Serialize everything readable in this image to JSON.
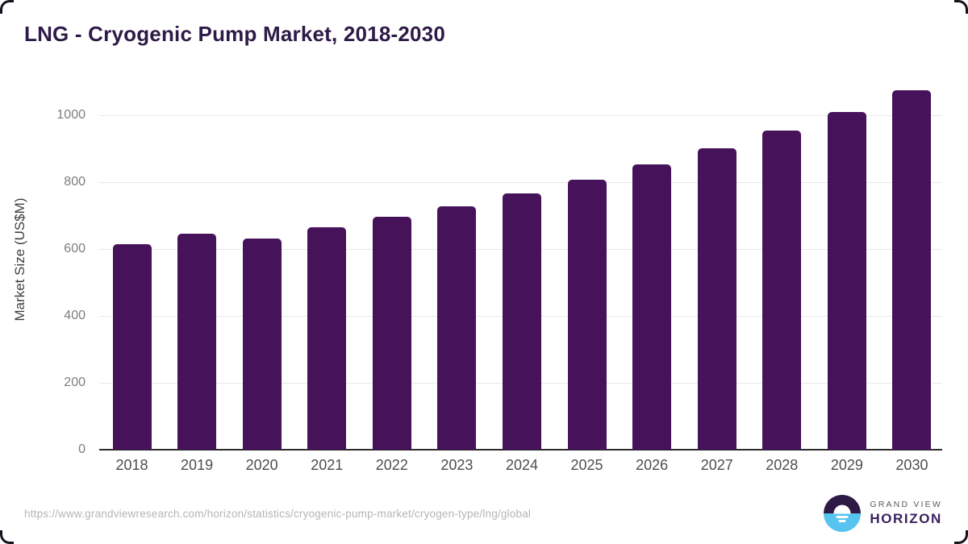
{
  "header": {
    "title": "LNG - Cryogenic Pump Market, 2018-2030"
  },
  "chart_data": {
    "type": "bar",
    "title": "LNG - Cryogenic Pump Market, 2018-2030",
    "categories": [
      "2018",
      "2019",
      "2020",
      "2021",
      "2022",
      "2023",
      "2024",
      "2025",
      "2026",
      "2027",
      "2028",
      "2029",
      "2030"
    ],
    "values": [
      613,
      646,
      630,
      664,
      696,
      728,
      766,
      807,
      852,
      901,
      953,
      1010,
      1073
    ],
    "xlabel": "",
    "ylabel": "Market Size (US$M)",
    "yticks": [
      0,
      200,
      400,
      600,
      800,
      1000
    ],
    "ylim": [
      0,
      1100
    ],
    "grid": true,
    "legend": false,
    "bar_color": "#46125a"
  },
  "footer": {
    "source_url": "https://www.grandviewresearch.com/horizon/statistics/cryogenic-pump-market/cryogen-type/lng/global",
    "logo": {
      "line1": "GRAND VIEW",
      "line2": "HORIZON"
    }
  },
  "colors": {
    "bar": "#46125a",
    "title_text": "#2e1a47",
    "logo_purple": "#2d1a45",
    "logo_blue": "#57c3ef",
    "gridline": "#e7e7e7",
    "axis_line": "#2b2b2b"
  }
}
